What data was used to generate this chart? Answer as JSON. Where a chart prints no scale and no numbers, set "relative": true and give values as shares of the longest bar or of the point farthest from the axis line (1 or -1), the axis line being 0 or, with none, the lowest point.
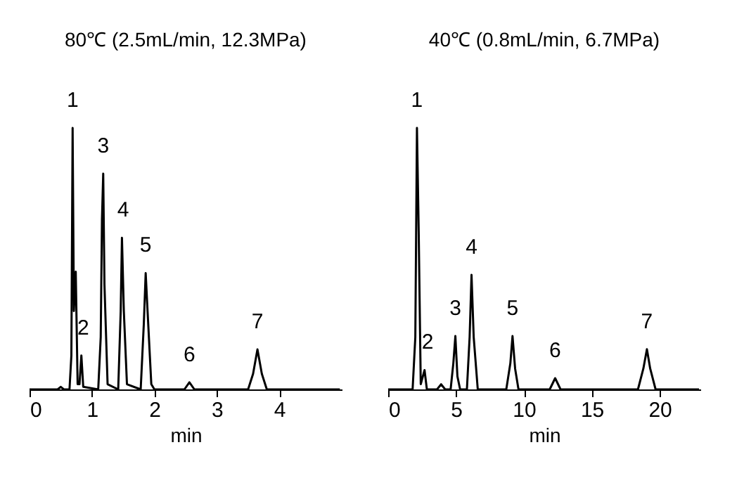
{
  "chart_data": [
    {
      "type": "line",
      "title": "80℃ (2.5mL/min, 12.3MPa)",
      "xlabel": "min",
      "relative": true,
      "xlim": [
        0,
        5
      ],
      "xticks": [
        0,
        1,
        2,
        3,
        4
      ],
      "grid": false,
      "series": [
        {
          "color": "#000000",
          "x": [
            0,
            0.45,
            0.5,
            0.55,
            0.64,
            0.67,
            0.69,
            0.71,
            0.74,
            0.77,
            0.8,
            0.83,
            0.86,
            1.1,
            1.14,
            1.16,
            1.18,
            1.2,
            1.25,
            1.42,
            1.46,
            1.48,
            1.51,
            1.56,
            1.78,
            1.83,
            1.86,
            1.89,
            1.95,
            2.0,
            2.48,
            2.56,
            2.64,
            3.5,
            3.58,
            3.65,
            3.72,
            3.8,
            4.97
          ],
          "values": [
            0,
            0,
            0.01,
            0,
            0,
            0.13,
            1,
            0.3,
            0.45,
            0.02,
            0.02,
            0.13,
            0.01,
            0,
            0.2,
            0.65,
            0.825,
            0.4,
            0.02,
            0,
            0.3,
            0.58,
            0.3,
            0.02,
            0,
            0.25,
            0.445,
            0.3,
            0.02,
            0,
            0,
            0.027,
            0,
            0,
            0.06,
            0.153,
            0.06,
            0,
            0
          ]
        }
      ],
      "annotations": [
        {
          "text": "1",
          "x": 0.69,
          "y": 1
        },
        {
          "text": "2",
          "x": 0.86,
          "y": 0.13
        },
        {
          "text": "3",
          "x": 1.18,
          "y": 0.825
        },
        {
          "text": "4",
          "x": 1.5,
          "y": 0.58
        },
        {
          "text": "5",
          "x": 1.86,
          "y": 0.445
        },
        {
          "text": "6",
          "x": 2.56,
          "y": 0.027
        },
        {
          "text": "7",
          "x": 3.65,
          "y": 0.153
        }
      ]
    },
    {
      "type": "line",
      "title": "40℃ (0.8mL/min, 6.7MPa)",
      "xlabel": "min",
      "relative": true,
      "xlim": [
        0,
        23
      ],
      "xticks": [
        0,
        5,
        10,
        15,
        20
      ],
      "grid": false,
      "series": [
        {
          "color": "#000000",
          "x": [
            0,
            1.8,
            2.0,
            2.12,
            2.25,
            2.4,
            2.68,
            2.85,
            3.6,
            3.9,
            4.2,
            4.6,
            4.8,
            4.95,
            5.1,
            5.3,
            5.8,
            6.0,
            6.14,
            6.3,
            6.6,
            8.7,
            9.0,
            9.16,
            9.35,
            9.6,
            11.9,
            12.3,
            12.7,
            18.4,
            18.8,
            19.06,
            19.3,
            19.7,
            22.9
          ],
          "values": [
            0,
            0,
            0.2,
            1,
            0.6,
            0.02,
            0.074,
            0,
            0,
            0.02,
            0,
            0,
            0.1,
            0.204,
            0.05,
            0,
            0,
            0.2,
            0.438,
            0.2,
            0,
            0,
            0.1,
            0.204,
            0.08,
            0,
            0,
            0.043,
            0,
            0,
            0.08,
            0.154,
            0.08,
            0,
            0
          ]
        }
      ],
      "annotations": [
        {
          "text": "1",
          "x": 2.12,
          "y": 1
        },
        {
          "text": "2",
          "x": 2.9,
          "y": 0.074
        },
        {
          "text": "3",
          "x": 4.95,
          "y": 0.204
        },
        {
          "text": "4",
          "x": 6.14,
          "y": 0.438
        },
        {
          "text": "5",
          "x": 9.16,
          "y": 0.204
        },
        {
          "text": "6",
          "x": 12.3,
          "y": 0.043
        },
        {
          "text": "7",
          "x": 19.06,
          "y": 0.154
        }
      ]
    }
  ]
}
